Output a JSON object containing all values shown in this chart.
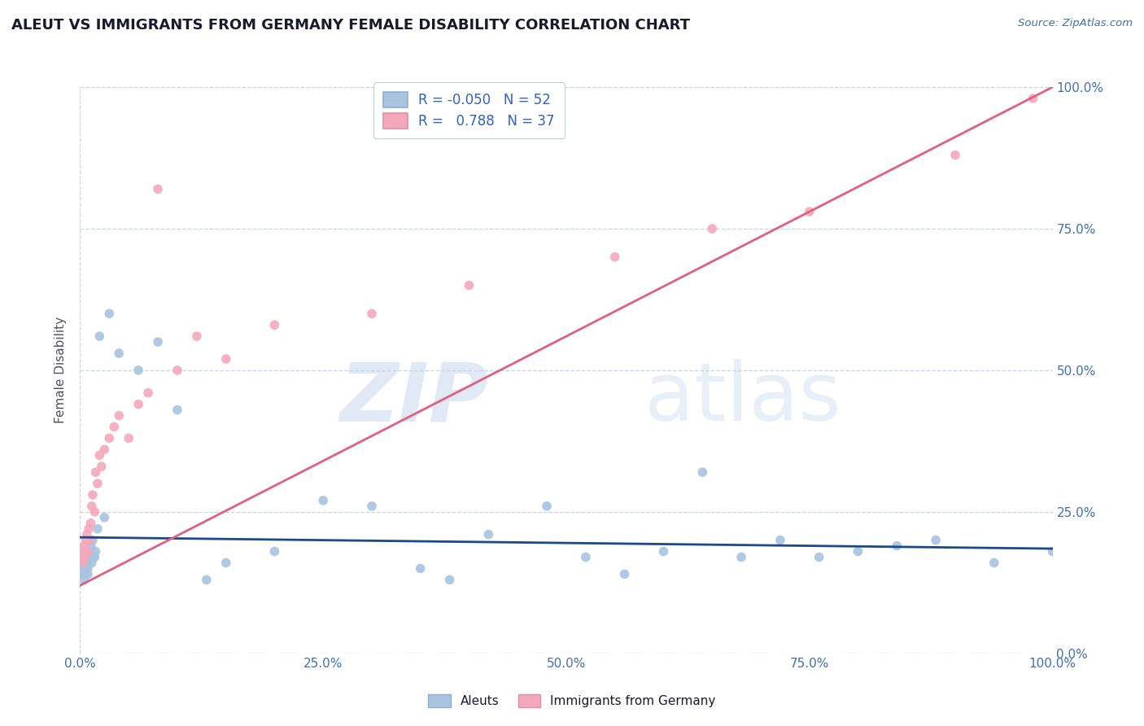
{
  "title": "ALEUT VS IMMIGRANTS FROM GERMANY FEMALE DISABILITY CORRELATION CHART",
  "source": "Source: ZipAtlas.com",
  "ylabel": "Female Disability",
  "watermark_zip": "ZIP",
  "watermark_atlas": "atlas",
  "r_aleut": -0.05,
  "n_aleut": 52,
  "r_germany": 0.788,
  "n_germany": 37,
  "aleut_color": "#a8c4e0",
  "germany_color": "#f4a8bc",
  "aleut_line_color": "#1a4a8a",
  "germany_line_color": "#e06080",
  "aleut_x": [
    0.001,
    0.002,
    0.002,
    0.003,
    0.003,
    0.004,
    0.004,
    0.005,
    0.005,
    0.006,
    0.006,
    0.007,
    0.007,
    0.008,
    0.008,
    0.009,
    0.01,
    0.011,
    0.012,
    0.013,
    0.014,
    0.015,
    0.016,
    0.018,
    0.02,
    0.025,
    0.03,
    0.04,
    0.06,
    0.08,
    0.1,
    0.13,
    0.15,
    0.2,
    0.25,
    0.3,
    0.35,
    0.38,
    0.42,
    0.48,
    0.52,
    0.56,
    0.6,
    0.64,
    0.68,
    0.72,
    0.76,
    0.8,
    0.84,
    0.88,
    0.94,
    1.0
  ],
  "aleut_y": [
    0.16,
    0.17,
    0.14,
    0.18,
    0.15,
    0.16,
    0.13,
    0.17,
    0.14,
    0.15,
    0.18,
    0.16,
    0.17,
    0.14,
    0.15,
    0.18,
    0.17,
    0.19,
    0.16,
    0.2,
    0.17,
    0.17,
    0.18,
    0.22,
    0.56,
    0.24,
    0.6,
    0.53,
    0.5,
    0.55,
    0.43,
    0.13,
    0.16,
    0.18,
    0.27,
    0.26,
    0.15,
    0.13,
    0.21,
    0.26,
    0.17,
    0.14,
    0.18,
    0.32,
    0.17,
    0.2,
    0.17,
    0.18,
    0.19,
    0.2,
    0.16,
    0.18
  ],
  "germany_x": [
    0.001,
    0.002,
    0.003,
    0.004,
    0.005,
    0.006,
    0.007,
    0.008,
    0.009,
    0.01,
    0.011,
    0.012,
    0.013,
    0.015,
    0.016,
    0.018,
    0.02,
    0.022,
    0.025,
    0.03,
    0.035,
    0.04,
    0.05,
    0.06,
    0.07,
    0.08,
    0.1,
    0.12,
    0.15,
    0.2,
    0.3,
    0.4,
    0.55,
    0.65,
    0.75,
    0.9,
    0.98
  ],
  "germany_y": [
    0.17,
    0.18,
    0.16,
    0.19,
    0.17,
    0.2,
    0.21,
    0.18,
    0.22,
    0.2,
    0.23,
    0.26,
    0.28,
    0.25,
    0.32,
    0.3,
    0.35,
    0.33,
    0.36,
    0.38,
    0.4,
    0.42,
    0.38,
    0.44,
    0.46,
    0.82,
    0.5,
    0.56,
    0.52,
    0.58,
    0.6,
    0.65,
    0.7,
    0.75,
    0.78,
    0.88,
    0.98
  ],
  "aleut_line_x": [
    0.0,
    1.0
  ],
  "aleut_line_y": [
    0.205,
    0.185
  ],
  "germany_line_x": [
    0.0,
    1.0
  ],
  "germany_line_y": [
    0.12,
    1.0
  ],
  "xlim": [
    0.0,
    1.0
  ],
  "ylim": [
    0.0,
    1.0
  ],
  "xticks": [
    0.0,
    0.25,
    0.5,
    0.75,
    1.0
  ],
  "yticks": [
    0.0,
    0.25,
    0.5,
    0.75,
    1.0
  ],
  "background_color": "#ffffff",
  "grid_color": "#c8d4e8",
  "tick_label_color": "#4070b0",
  "title_color": "#1a1a2e",
  "source_color": "#4070b0",
  "ylabel_color": "#505060",
  "legend_text_color": "#1a1a2e",
  "legend_r_color": "#3060c0"
}
